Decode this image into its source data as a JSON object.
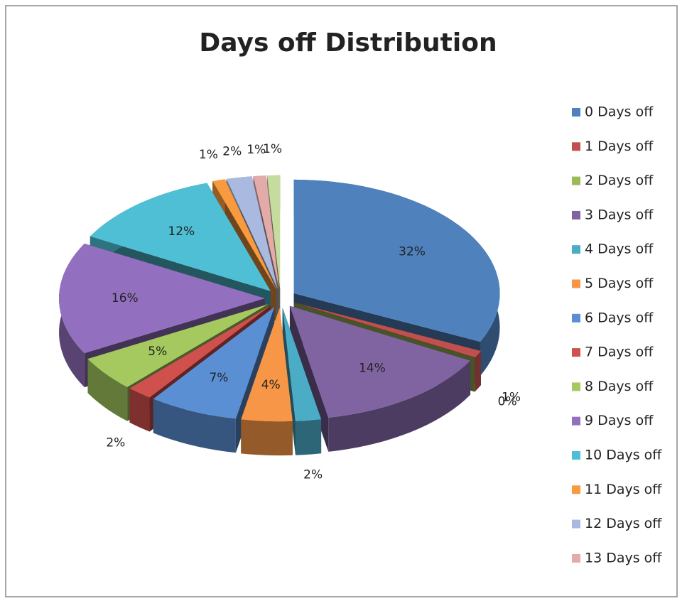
{
  "chart_data": {
    "type": "pie",
    "title": "Days off Distribution",
    "categories": [
      "0 Days off",
      "1 Days off",
      "2 Days off",
      "3 Days off",
      "4 Days off",
      "5 Days off",
      "6 Days off",
      "7 Days off",
      "8 Days off",
      "9 Days off",
      "10 Days off",
      "11 Days off",
      "12 Days off",
      "13 Days off",
      null
    ],
    "values": [
      32,
      1,
      0,
      14,
      2,
      4,
      7,
      2,
      5,
      16,
      12,
      1,
      2,
      1,
      1
    ],
    "value_labels": [
      "32%",
      "1%",
      "0%",
      "14%",
      "2%",
      "4%",
      "7%",
      "2%",
      "5%",
      "16%",
      "12%",
      "1%",
      "2%",
      "1%",
      "1%"
    ],
    "colors": [
      "#4f81bd",
      "#c0504d",
      "#9bbb59",
      "#8064a2",
      "#4bacc6",
      "#f79646",
      "#5a8fd4",
      "#d0504d",
      "#a5c95f",
      "#9270bf",
      "#4fbfd6",
      "#f99a3e",
      "#a9b9e0",
      "#e2aaa8",
      "#c6dc9e"
    ],
    "legend": "right"
  }
}
